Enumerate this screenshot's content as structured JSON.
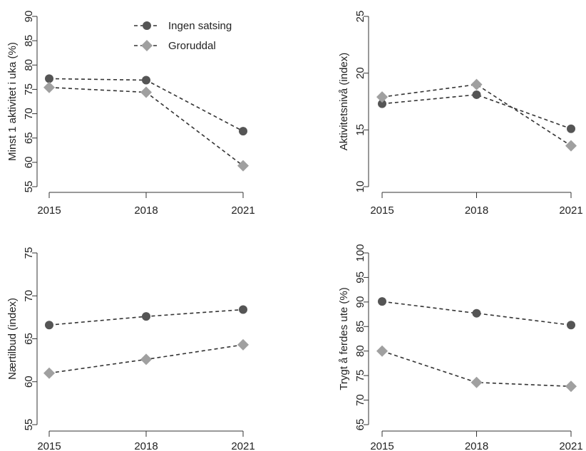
{
  "chart_data": [
    {
      "type": "line",
      "ylabel": "Minst 1 aktivitet i uka (%)",
      "xlabel": "",
      "x": [
        2015,
        2018,
        2021
      ],
      "xtick_labels": [
        "2015",
        "2018",
        "2021"
      ],
      "ylim": [
        55,
        90
      ],
      "yticks": [
        55,
        60,
        65,
        70,
        75,
        80,
        85,
        90
      ],
      "ytick_labels": [
        "55",
        "60",
        "65",
        "70",
        "75",
        "80",
        "85",
        "90"
      ],
      "grid": false,
      "legend": "top-center",
      "series": [
        {
          "name": "Ingen satsing",
          "values": [
            77.2,
            76.9,
            66.4
          ],
          "marker": "circle",
          "color": "#555555"
        },
        {
          "name": "Groruddal",
          "values": [
            75.4,
            74.4,
            59.3
          ],
          "marker": "diamond",
          "color": "#a0a0a0"
        }
      ]
    },
    {
      "type": "line",
      "ylabel": "Aktivitetsnivå (index)",
      "xlabel": "",
      "x": [
        2015,
        2018,
        2021
      ],
      "xtick_labels": [
        "2015",
        "2018",
        "2021"
      ],
      "ylim": [
        10,
        25
      ],
      "yticks": [
        10,
        15,
        20,
        25
      ],
      "ytick_labels": [
        "10",
        "15",
        "20",
        "25"
      ],
      "grid": false,
      "series": [
        {
          "name": "Ingen satsing",
          "values": [
            17.3,
            18.1,
            15.1
          ],
          "marker": "circle",
          "color": "#555555"
        },
        {
          "name": "Groruddal",
          "values": [
            17.9,
            19.0,
            13.6
          ],
          "marker": "diamond",
          "color": "#a0a0a0"
        }
      ]
    },
    {
      "type": "line",
      "ylabel": "Nærtilbud (index)",
      "xlabel": "",
      "x": [
        2015,
        2018,
        2021
      ],
      "xtick_labels": [
        "2015",
        "2018",
        "2021"
      ],
      "ylim": [
        55,
        75
      ],
      "yticks": [
        55,
        60,
        65,
        70,
        75
      ],
      "ytick_labels": [
        "55",
        "60",
        "65",
        "70",
        "75"
      ],
      "grid": false,
      "series": [
        {
          "name": "Ingen satsing",
          "values": [
            66.6,
            67.6,
            68.4
          ],
          "marker": "circle",
          "color": "#555555"
        },
        {
          "name": "Groruddal",
          "values": [
            61.0,
            62.6,
            64.3
          ],
          "marker": "diamond",
          "color": "#a0a0a0"
        }
      ]
    },
    {
      "type": "line",
      "ylabel": "Trygt å ferdes ute (%)",
      "xlabel": "",
      "x": [
        2015,
        2018,
        2021
      ],
      "xtick_labels": [
        "2015",
        "2018",
        "2021"
      ],
      "ylim": [
        65,
        100
      ],
      "yticks": [
        65,
        70,
        75,
        80,
        85,
        90,
        95,
        100
      ],
      "ytick_labels": [
        "65",
        "70",
        "75",
        "80",
        "85",
        "90",
        "95",
        "100"
      ],
      "grid": false,
      "series": [
        {
          "name": "Ingen satsing",
          "values": [
            90.1,
            87.7,
            85.3
          ],
          "marker": "circle",
          "color": "#555555"
        },
        {
          "name": "Groruddal",
          "values": [
            80.0,
            73.6,
            72.8
          ],
          "marker": "diamond",
          "color": "#a0a0a0"
        }
      ]
    }
  ]
}
